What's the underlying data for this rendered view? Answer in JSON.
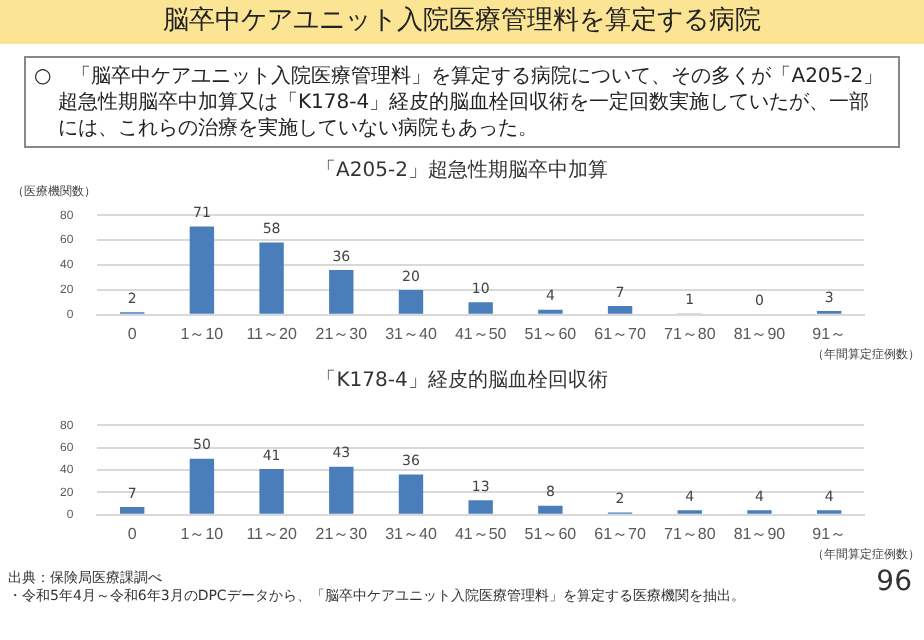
{
  "chart_data": [
    {
      "type": "other",
      "title": "脳卒中ケアユニット入院医療管理料を算定する病院",
      "annotations": [
        "○　「脳卒中ケアユニット入院医療管理料」を算定する病院について、その多くが「A205-2」超急性期脳卒中加算又は「K178-4」経皮的脳血栓回収術を一定回数実施していたが、一部には、これらの治療を実施していない病院もあった。"
      ]
    },
    {
      "type": "bar",
      "title": "「A205-2」超急性期脳卒中加算",
      "ylabel": "（医療機関数）",
      "xlabel": "（年間算定症例数）",
      "categories": [
        "0",
        "1～10",
        "11～20",
        "21～30",
        "31～40",
        "41～50",
        "51～60",
        "61～70",
        "71～80",
        "81～90",
        "91～"
      ],
      "values": [
        2,
        71,
        58,
        36,
        20,
        10,
        4,
        7,
        1,
        0,
        3
      ],
      "color": "#4a7ebb",
      "ylim": [
        0,
        80
      ],
      "yticks": [
        0,
        20,
        40,
        60,
        80
      ],
      "grid": "y",
      "data_labels": true
    },
    {
      "type": "bar",
      "title": "「K178-4」経皮的脳血栓回収術",
      "xlabel": "（年間算定症例数）",
      "categories": [
        "0",
        "1～10",
        "11～20",
        "21～30",
        "31～40",
        "41～50",
        "51～60",
        "61～70",
        "71～80",
        "81～90",
        "91～"
      ],
      "values": [
        7,
        50,
        41,
        43,
        36,
        13,
        8,
        2,
        4,
        4,
        4
      ],
      "color": "#4a7ebb",
      "ylim": [
        0,
        80
      ],
      "yticks": [
        0,
        20,
        40,
        60,
        80
      ],
      "grid": "y",
      "data_labels": true,
      "annotations": [
        "出典：保険局医療課調べ",
        "・令和5年4月～令和6年3月のDPCデータから、「脳卒中ケアユニット入院医療管理料」を算定する医療機関を抽出。",
        "96"
      ]
    }
  ]
}
